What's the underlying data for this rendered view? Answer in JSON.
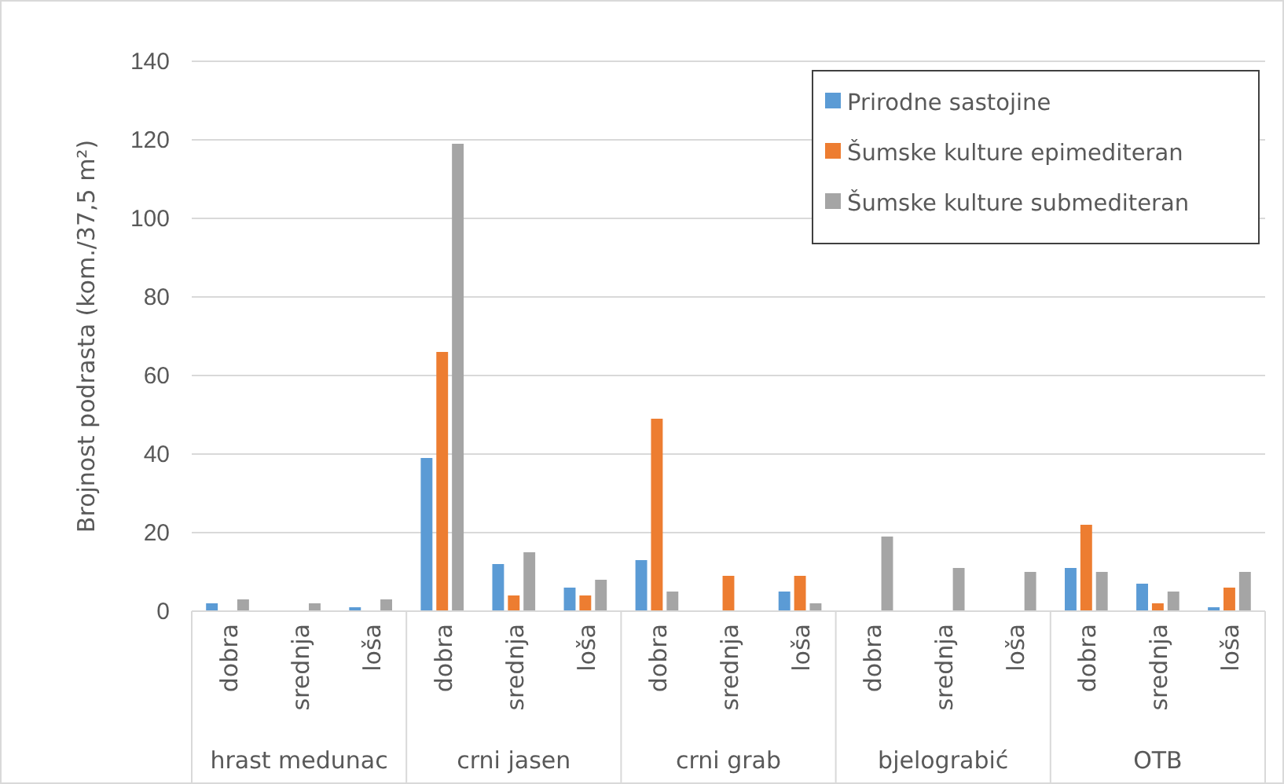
{
  "chart_data": {
    "type": "bar",
    "ylabel": "Brojnost podrasta (kom./37,5 m²)",
    "categories": [
      "dobra",
      "srednja",
      "loša",
      "dobra",
      "srednja",
      "loša",
      "dobra",
      "srednja",
      "loša",
      "dobra",
      "srednja",
      "loša",
      "dobra",
      "srednja",
      "loša"
    ],
    "series": [
      {
        "name": "Prirodne sastojine",
        "color": "#5b9bd5",
        "values": [
          2,
          null,
          1,
          39,
          12,
          6,
          13,
          null,
          5,
          null,
          null,
          null,
          11,
          7,
          1
        ]
      },
      {
        "name": "Šumske kulture epimediteran",
        "color": "#ed7d31",
        "values": [
          null,
          null,
          null,
          66,
          4,
          4,
          49,
          9,
          9,
          null,
          null,
          null,
          22,
          2,
          6
        ]
      },
      {
        "name": "Šumske kulture submediteran",
        "color": "#a5a5a5",
        "values": [
          3,
          2,
          3,
          119,
          15,
          8,
          5,
          null,
          2,
          19,
          11,
          10,
          10,
          5,
          10
        ]
      }
    ],
    "annotations": [
      "hrast medunac",
      "crni jasen",
      "crni grab",
      "bjelograbić",
      "OTB"
    ],
    "ylim": [
      0,
      140
    ],
    "yticks": [
      0,
      20,
      40,
      60,
      80,
      100,
      120,
      140
    ],
    "grid": "y",
    "legend": "top right"
  }
}
